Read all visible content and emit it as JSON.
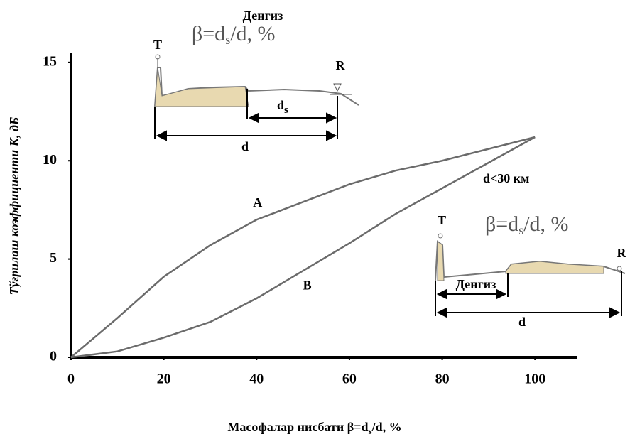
{
  "chart_data": {
    "type": "line",
    "xlabel": [
      "Масофалар нисбати β=d",
      "s",
      "/d, %"
    ],
    "ylabel": "Тўғрилаш коэффициенти К, дБ",
    "x": [
      0,
      10,
      20,
      30,
      40,
      50,
      60,
      70,
      80,
      90,
      100
    ],
    "series": [
      {
        "name": "A",
        "color": "#6b6b6b",
        "values": [
          0,
          2.0,
          4.1,
          5.7,
          7.0,
          7.9,
          8.8,
          9.5,
          10.0,
          10.6,
          11.2
        ]
      },
      {
        "name": "B",
        "color": "#6b6b6b",
        "values": [
          0,
          0.3,
          1.0,
          1.8,
          3.0,
          4.4,
          5.8,
          7.3,
          8.6,
          9.9,
          11.2
        ]
      }
    ],
    "xlim": [
      0,
      109
    ],
    "ylim": [
      0,
      15.5
    ],
    "xticks": [
      0,
      20,
      40,
      60,
      80,
      100
    ],
    "yticks": [
      0,
      5,
      10,
      15
    ],
    "annotations": [
      "Денгиз",
      "T",
      "β=d",
      "s",
      "/d, %",
      "R",
      "d",
      "s",
      "d",
      "d<30 км",
      "T",
      "β=d",
      "s",
      "/d, %",
      "R",
      "Денгиз",
      "d"
    ]
  }
}
